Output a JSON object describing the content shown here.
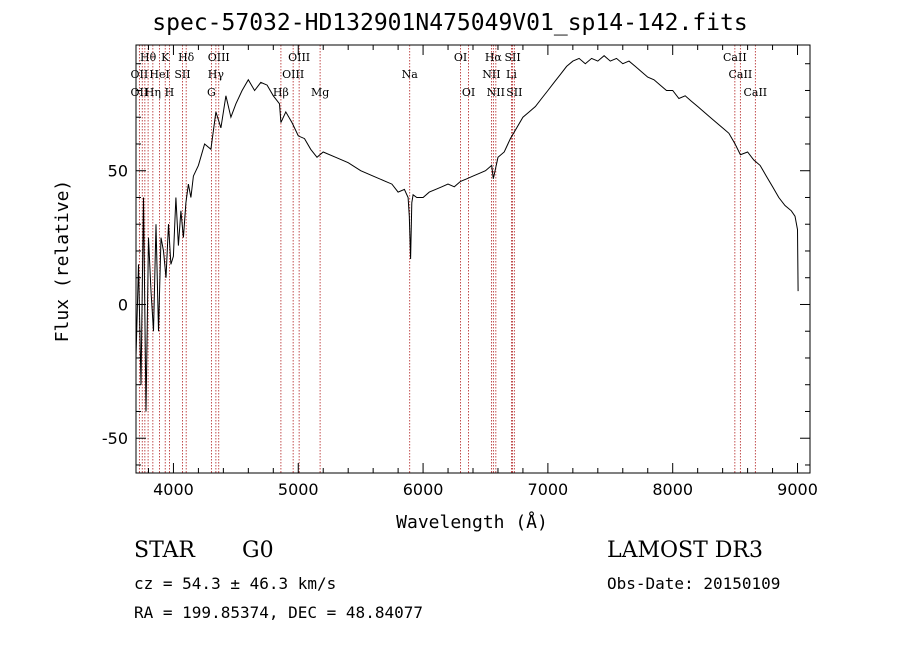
{
  "chart_data": {
    "type": "line",
    "title": "spec-57032-HD132901N475049V01_sp14-142.fits",
    "xlabel": "Wavelength (Å)",
    "ylabel": "Flux (relative)",
    "xlim": [
      3700,
      9100
    ],
    "ylim": [
      -63,
      97
    ],
    "x_ticks": [
      4000,
      5000,
      6000,
      7000,
      8000,
      9000
    ],
    "y_ticks": [
      -50,
      0,
      50
    ],
    "grid": false,
    "series": [
      {
        "x": [
          3700,
          3720,
          3740,
          3760,
          3780,
          3800,
          3820,
          3840,
          3860,
          3880,
          3900,
          3920,
          3940,
          3960,
          3980,
          4000,
          4020,
          4040,
          4060,
          4080,
          4100,
          4120,
          4140,
          4160,
          4200,
          4250,
          4300,
          4340,
          4380,
          4420,
          4460,
          4500,
          4550,
          4600,
          4650,
          4700,
          4750,
          4800,
          4850,
          4861,
          4900,
          4950,
          5000,
          5050,
          5100,
          5150,
          5200,
          5300,
          5400,
          5500,
          5600,
          5700,
          5750,
          5800,
          5850,
          5880,
          5890,
          5900,
          5910,
          5920,
          5950,
          6000,
          6050,
          6100,
          6150,
          6200,
          6250,
          6300,
          6350,
          6400,
          6450,
          6500,
          6550,
          6563,
          6600,
          6650,
          6700,
          6750,
          6800,
          6850,
          6900,
          6950,
          7000,
          7050,
          7100,
          7150,
          7200,
          7250,
          7300,
          7350,
          7400,
          7450,
          7500,
          7550,
          7600,
          7650,
          7700,
          7750,
          7800,
          7850,
          7900,
          7950,
          8000,
          8050,
          8100,
          8150,
          8200,
          8250,
          8300,
          8350,
          8400,
          8450,
          8500,
          8542,
          8600,
          8650,
          8700,
          8750,
          8800,
          8850,
          8900,
          8950,
          8980,
          9000,
          9005
        ],
        "y": [
          -20,
          15,
          -30,
          40,
          -40,
          25,
          5,
          -10,
          30,
          -10,
          25,
          20,
          10,
          30,
          15,
          18,
          40,
          22,
          35,
          25,
          38,
          45,
          40,
          48,
          52,
          60,
          58,
          72,
          66,
          78,
          70,
          75,
          80,
          84,
          80,
          83,
          82,
          78,
          75,
          68,
          72,
          68,
          63,
          62,
          58,
          55,
          57,
          55,
          53,
          50,
          48,
          46,
          45,
          42,
          43,
          40,
          33,
          17,
          38,
          41,
          40,
          40,
          42,
          43,
          44,
          45,
          44,
          46,
          47,
          48,
          49,
          50,
          52,
          47,
          55,
          57,
          62,
          66,
          70,
          72,
          74,
          77,
          80,
          83,
          86,
          89,
          91,
          92,
          90,
          92,
          91,
          93,
          91,
          92,
          90,
          91,
          89,
          87,
          85,
          84,
          82,
          80,
          80,
          77,
          78,
          76,
          74,
          72,
          70,
          68,
          66,
          64,
          60,
          56,
          57,
          54,
          52,
          48,
          44,
          40,
          37,
          35,
          33,
          28,
          5
        ]
      }
    ],
    "line_labels": [
      {
        "text": "Hθ",
        "x": 3797,
        "row": 1
      },
      {
        "text": "K",
        "x": 3934,
        "row": 1
      },
      {
        "text": "Hδ",
        "x": 4102,
        "row": 1
      },
      {
        "text": "OIII",
        "x": 4363,
        "row": 1
      },
      {
        "text": "OIII",
        "x": 5007,
        "row": 1
      },
      {
        "text": "OI",
        "x": 6300,
        "row": 1
      },
      {
        "text": "Hα",
        "x": 6563,
        "row": 1
      },
      {
        "text": "SII",
        "x": 6717,
        "row": 1
      },
      {
        "text": "CaII",
        "x": 8498,
        "row": 1
      },
      {
        "text": "OII",
        "x": 3727,
        "row": 2
      },
      {
        "text": "HeI",
        "x": 3889,
        "row": 2
      },
      {
        "text": "SII",
        "x": 4072,
        "row": 2
      },
      {
        "text": "Hγ",
        "x": 4340,
        "row": 2
      },
      {
        "text": "OIII",
        "x": 4959,
        "row": 2
      },
      {
        "text": "Na",
        "x": 5893,
        "row": 2
      },
      {
        "text": "NII",
        "x": 6548,
        "row": 2
      },
      {
        "text": "Li",
        "x": 6708,
        "row": 2
      },
      {
        "text": "CaII",
        "x": 8542,
        "row": 2
      },
      {
        "text": "OII",
        "x": 3727,
        "row": 3
      },
      {
        "text": "Hη",
        "x": 3835,
        "row": 3
      },
      {
        "text": "H",
        "x": 3968,
        "row": 3
      },
      {
        "text": "G",
        "x": 4304,
        "row": 3
      },
      {
        "text": "Hβ",
        "x": 4861,
        "row": 3
      },
      {
        "text": "Mg",
        "x": 5175,
        "row": 3
      },
      {
        "text": "OI",
        "x": 6364,
        "row": 3
      },
      {
        "text": "NII",
        "x": 6583,
        "row": 3
      },
      {
        "text": "SII",
        "x": 6731,
        "row": 3
      },
      {
        "text": "CaII",
        "x": 8662,
        "row": 3
      }
    ],
    "line_markers_x": [
      3727,
      3750,
      3771,
      3797,
      3835,
      3889,
      3934,
      3968,
      4072,
      4102,
      4304,
      4340,
      4363,
      4861,
      4959,
      5007,
      5175,
      5893,
      6300,
      6364,
      6548,
      6563,
      6583,
      6708,
      6717,
      6731,
      8498,
      8542,
      8662
    ],
    "line_marker_color": "#b22222",
    "spectrum_color": "#000000"
  },
  "info": {
    "object_class": "STAR",
    "subclass": "G0",
    "survey": "LAMOST DR3",
    "cz": "cz = 54.3 ± 46.3 km/s",
    "obs_date": "Obs-Date: 20150109",
    "coords": "RA = 199.85374, DEC =  48.84077"
  }
}
